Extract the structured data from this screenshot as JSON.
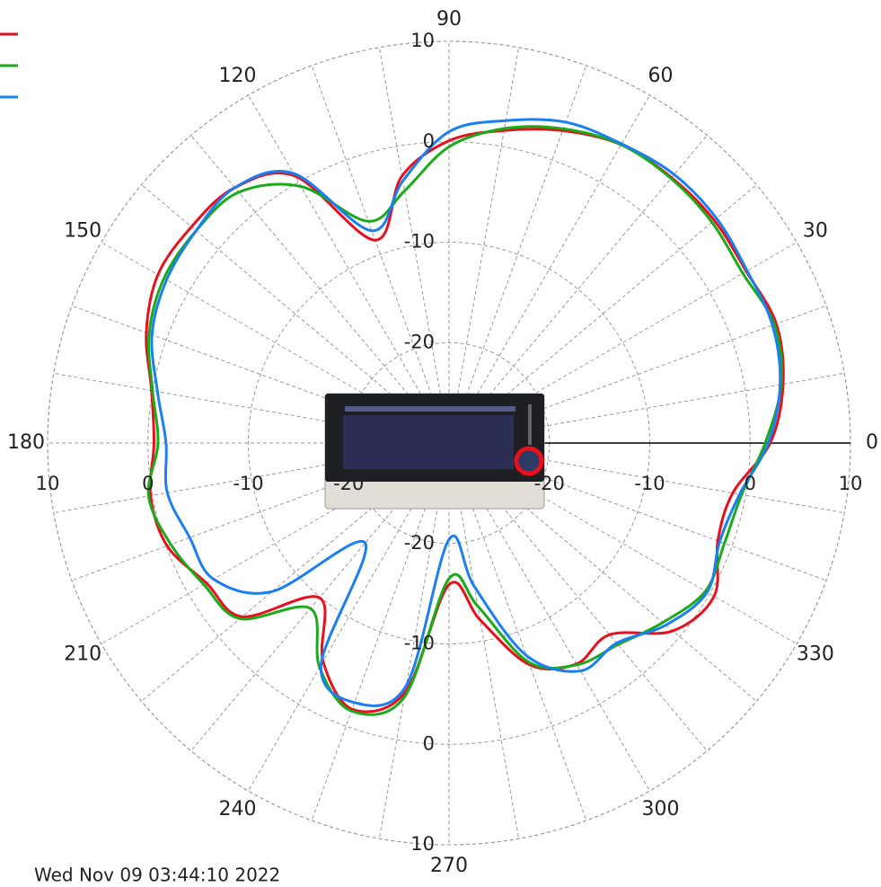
{
  "chart_data": {
    "type": "polar",
    "theta": [
      0,
      10,
      20,
      30,
      40,
      50,
      60,
      70,
      80,
      90,
      100,
      110,
      120,
      130,
      140,
      150,
      160,
      170,
      180,
      190,
      200,
      210,
      220,
      230,
      240,
      250,
      260,
      270,
      280,
      290,
      300,
      310,
      320,
      330,
      340,
      350
    ],
    "series": [
      {
        "color": "#e8101c",
        "values": [
          2.0,
          3.8,
          4.7,
          4.2,
          4.5,
          4.5,
          4.3,
          3.1,
          1.6,
          0.1,
          -3.0,
          -8.5,
          0.7,
          3.2,
          3.5,
          3.5,
          2.1,
          0.1,
          -0.6,
          0.2,
          -0.1,
          -2.1,
          -3.1,
          -9.9,
          -4.9,
          -1.8,
          -4.8,
          -15.9,
          -12.1,
          -6.5,
          -4.6,
          -5.1,
          -0.9,
          0.5,
          -1.5,
          -1.3
        ]
      },
      {
        "color": "#1aaa1a",
        "values": [
          1.5,
          3.6,
          4.5,
          3.8,
          4.2,
          4.4,
          4.3,
          3.3,
          1.8,
          -0.5,
          -4.5,
          -6.5,
          -0.5,
          2.6,
          2.9,
          2.8,
          1.8,
          0.0,
          -1.0,
          0.4,
          -0.5,
          -1.8,
          -2.8,
          -8.5,
          -4.2,
          -1.6,
          -4.3,
          -16.5,
          -13.5,
          -6.8,
          -4.5,
          -3.8,
          -2.2,
          -0.5,
          -0.8,
          -0.4
        ]
      },
      {
        "color": "#1a7ff0",
        "values": [
          1.8,
          3.5,
          4.3,
          4.3,
          4.8,
          4.9,
          4.4,
          4.0,
          2.6,
          1.0,
          -3.5,
          -7.5,
          1.0,
          3.2,
          2.9,
          2.5,
          1.5,
          -0.5,
          -1.8,
          -1.5,
          -2.5,
          -2.9,
          -7.0,
          -17.0,
          -4.5,
          -2.5,
          -5.5,
          -20.4,
          -15.5,
          -7.5,
          -3.8,
          -4.0,
          -1.8,
          -0.3,
          -1.3,
          -0.6
        ]
      }
    ],
    "rlim": [
      -30,
      10
    ],
    "rticks": [
      -20,
      -10,
      0,
      10
    ],
    "thetaticks": [
      0,
      30,
      60,
      90,
      120,
      150,
      180,
      210,
      240,
      270,
      300,
      330
    ],
    "grid": true,
    "footer": "Wed Nov 09 03:44:10 2022"
  }
}
